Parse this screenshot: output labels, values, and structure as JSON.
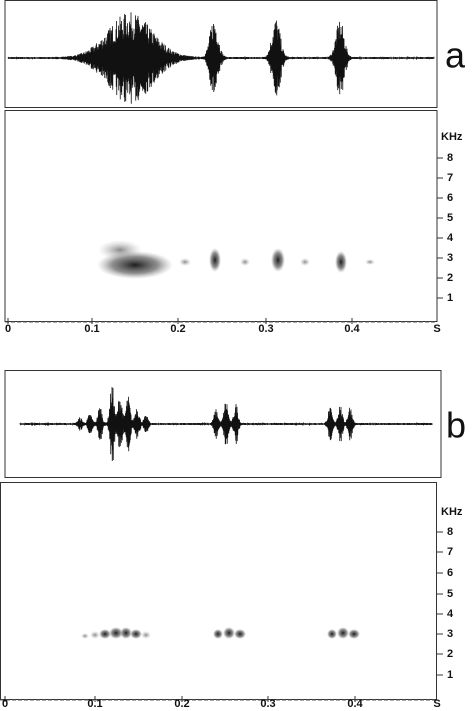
{
  "panels": [
    {
      "label": "a",
      "frequency_unit": "KHz",
      "time_unit": "S",
      "frequency_ticks": [
        "8",
        "7",
        "6",
        "5",
        "4",
        "3",
        "2",
        "1"
      ],
      "time_ticks": [
        "0",
        "0.1",
        "0.2",
        "0.3",
        "0.4"
      ]
    },
    {
      "label": "b",
      "frequency_unit": "KHz",
      "time_unit": "S",
      "frequency_ticks": [
        "8",
        "7",
        "6",
        "5",
        "4",
        "3",
        "2",
        "1"
      ],
      "time_ticks": [
        "0",
        "0.1",
        "0.2",
        "0.3",
        "0.4"
      ]
    }
  ]
}
